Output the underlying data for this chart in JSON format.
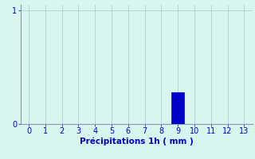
{
  "x_values": [
    0,
    1,
    2,
    3,
    4,
    5,
    6,
    7,
    8,
    9,
    10,
    11,
    12,
    13
  ],
  "bar_values": [
    0,
    0,
    0,
    0,
    0,
    0,
    0,
    0,
    0,
    0.28,
    0,
    0,
    0,
    0
  ],
  "bar_color": "#0000cc",
  "bar_edge_color": "#0000cc",
  "background_color": "#d8f5f0",
  "grid_color": "#b0d0cc",
  "axis_color": "#8899aa",
  "text_color": "#0000cc",
  "xlabel": "Précipitations 1h ( mm )",
  "xlim": [
    -0.5,
    13.5
  ],
  "ylim": [
    0,
    1.05
  ],
  "yticks": [
    0,
    1
  ],
  "xticks": [
    0,
    1,
    2,
    3,
    4,
    5,
    6,
    7,
    8,
    9,
    10,
    11,
    12,
    13
  ],
  "bar_width": 0.75,
  "xlabel_fontsize": 7.5,
  "tick_fontsize": 7
}
